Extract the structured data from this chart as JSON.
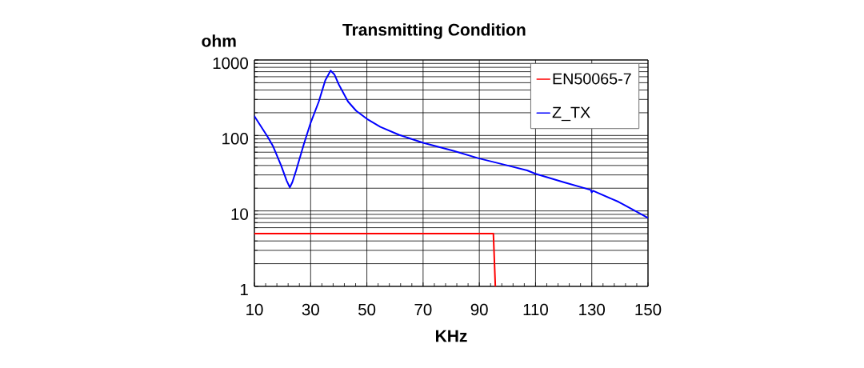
{
  "chart_data": {
    "type": "line",
    "title": "Transmitting Condition",
    "xlabel": "KHz",
    "ylabel": "ohm",
    "xlim": [
      10,
      150
    ],
    "xticks": [
      10,
      30,
      50,
      70,
      90,
      110,
      130,
      150
    ],
    "ylim": [
      1,
      1000
    ],
    "yticks": [
      1,
      10,
      100,
      1000
    ],
    "log": "y",
    "grid": true,
    "legend": "top right",
    "marker": "none",
    "line_style": "solid",
    "series": [
      {
        "name": "EN50065-7",
        "color": "#ff0000",
        "x": [
          10,
          95,
          95.7
        ],
        "values": [
          5,
          5,
          1
        ]
      },
      {
        "name": "Z_TX",
        "color": "#0000ff",
        "x": [
          10,
          14.8,
          16.7,
          19.5,
          21.5,
          22.6,
          23.5,
          24.8,
          27.6,
          30,
          32.9,
          35.2,
          37.1,
          38.5,
          40,
          43.3,
          46.2,
          50,
          54.8,
          61.4,
          70,
          80.5,
          90,
          99.5,
          107,
          110,
          120,
          129.6,
          130,
          130.4,
          139.5,
          150
        ],
        "values": [
          180,
          95,
          71,
          40,
          25,
          20.5,
          24,
          34,
          77,
          147,
          281,
          537,
          724,
          640,
          475,
          281,
          212,
          166,
          130,
          102,
          80,
          63,
          49.5,
          40.5,
          34.4,
          31,
          24,
          19,
          17.6,
          18.5,
          13.2,
          8.1
        ]
      }
    ]
  }
}
